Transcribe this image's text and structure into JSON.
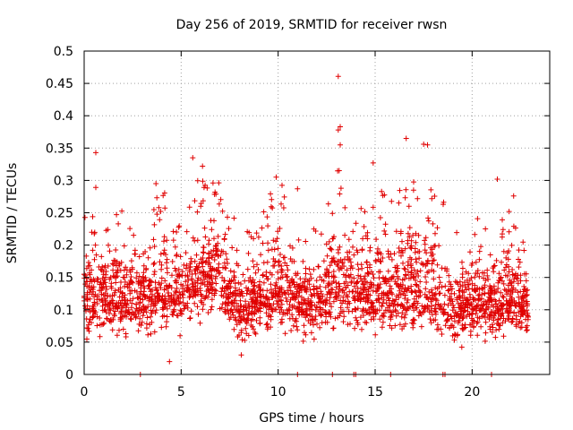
{
  "chart_data": {
    "type": "scatter",
    "title": "Day 256 of 2019, SRMTID for receiver rwsn",
    "xlabel": "GPS time / hours",
    "ylabel": "SRMTID / TECUs",
    "xlim": [
      0,
      24
    ],
    "ylim": [
      0,
      0.5
    ],
    "xticks": [
      0,
      5,
      10,
      15,
      20
    ],
    "yticks": [
      0,
      0.05,
      0.1,
      0.15,
      0.2,
      0.25,
      0.3,
      0.35,
      0.4,
      0.45,
      0.5
    ],
    "xtick_labels": [
      "0",
      "5",
      "10",
      "15",
      "20"
    ],
    "ytick_labels": [
      "0",
      "0.05",
      "0.1",
      "0.15",
      "0.2",
      "0.25",
      "0.3",
      "0.35",
      "0.4",
      "0.45",
      "0.5"
    ],
    "grid": true,
    "marker": "plus",
    "color": "#e00000",
    "time_range_hours": [
      0,
      22.9
    ],
    "typical_range": [
      0.05,
      0.2
    ],
    "envelope": {
      "hours": [
        0,
        1,
        2,
        3,
        4,
        5,
        6,
        7,
        8,
        9,
        10,
        11,
        12,
        13,
        14,
        15,
        16,
        17,
        18,
        19,
        20,
        21,
        22,
        23
      ],
      "median": [
        0.13,
        0.12,
        0.11,
        0.12,
        0.13,
        0.12,
        0.15,
        0.16,
        0.1,
        0.12,
        0.13,
        0.12,
        0.1,
        0.14,
        0.13,
        0.12,
        0.13,
        0.14,
        0.13,
        0.1,
        0.11,
        0.1,
        0.12,
        0.1
      ],
      "upper": [
        0.22,
        0.2,
        0.22,
        0.2,
        0.24,
        0.2,
        0.26,
        0.25,
        0.18,
        0.2,
        0.26,
        0.2,
        0.18,
        0.28,
        0.22,
        0.24,
        0.24,
        0.26,
        0.28,
        0.16,
        0.22,
        0.18,
        0.24,
        0.16
      ],
      "lower": [
        0.05,
        0.05,
        0.05,
        0.05,
        0.05,
        0.05,
        0.07,
        0.07,
        0.04,
        0.05,
        0.06,
        0.05,
        0.04,
        0.05,
        0.05,
        0.05,
        0.05,
        0.06,
        0.05,
        0.03,
        0.04,
        0.04,
        0.05,
        0.05
      ]
    },
    "notable_points": [
      {
        "x": 0.6,
        "y": 0.343
      },
      {
        "x": 0.6,
        "y": 0.289
      },
      {
        "x": 3.7,
        "y": 0.295
      },
      {
        "x": 5.6,
        "y": 0.335
      },
      {
        "x": 6.1,
        "y": 0.322
      },
      {
        "x": 9.9,
        "y": 0.305
      },
      {
        "x": 11.0,
        "y": 0.287
      },
      {
        "x": 13.1,
        "y": 0.461
      },
      {
        "x": 13.2,
        "y": 0.383
      },
      {
        "x": 13.1,
        "y": 0.378
      },
      {
        "x": 13.2,
        "y": 0.355
      },
      {
        "x": 14.9,
        "y": 0.327
      },
      {
        "x": 16.6,
        "y": 0.365
      },
      {
        "x": 17.5,
        "y": 0.356
      },
      {
        "x": 17.7,
        "y": 0.355
      },
      {
        "x": 21.3,
        "y": 0.302
      },
      {
        "x": 8.1,
        "y": 0.03
      },
      {
        "x": 4.4,
        "y": 0.02
      }
    ],
    "zero_points_hours": [
      2.9,
      11.0,
      12.8,
      13.9,
      14.0,
      15.8,
      18.5,
      18.6,
      21.0
    ]
  }
}
